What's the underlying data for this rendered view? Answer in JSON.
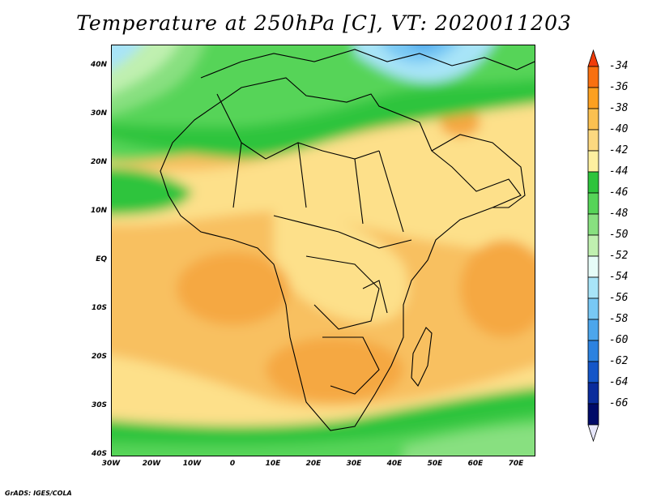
{
  "title": "Temperature at 250hPa [C], VT: 2020011203",
  "credit": "GrADS: IGES/COLA",
  "map": {
    "lat_labels": [
      "40N",
      "30N",
      "20N",
      "10N",
      "EQ",
      "10S",
      "20S",
      "30S",
      "40S"
    ],
    "lon_labels": [
      "30W",
      "20W",
      "10W",
      "0",
      "10E",
      "20E",
      "30E",
      "40E",
      "50E",
      "60E",
      "70E"
    ]
  },
  "colorbar": {
    "labels": [
      "-34",
      "-36",
      "-38",
      "-40",
      "-42",
      "-44",
      "-46",
      "-48",
      "-50",
      "-52",
      "-54",
      "-56",
      "-58",
      "-60",
      "-62",
      "-64",
      "-66"
    ],
    "colors": [
      "#f03c0a",
      "#f87010",
      "#fca020",
      "#fac050",
      "#fcd880",
      "#fef0a0",
      "#2ec43c",
      "#56d458",
      "#88e080",
      "#c0f0b0",
      "#e6fcf8",
      "#a8e4f8",
      "#78c8f4",
      "#4ca6ec",
      "#2c82e0",
      "#1456c8",
      "#0a2c9c",
      "#000a68",
      "#e6e6fa"
    ]
  }
}
